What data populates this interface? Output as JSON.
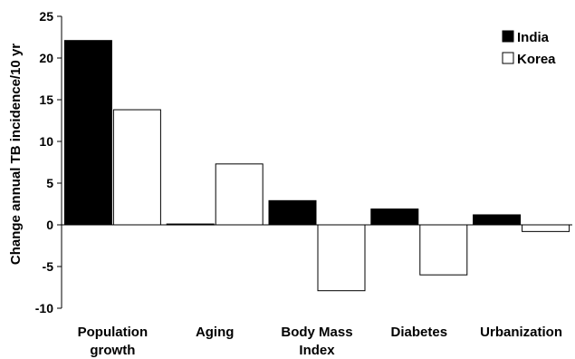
{
  "chart_data": {
    "type": "bar",
    "categories": [
      [
        "Population",
        "growth"
      ],
      [
        "Aging"
      ],
      [
        "Body Mass",
        "Index"
      ],
      [
        "Diabetes"
      ],
      [
        "Urbanization"
      ]
    ],
    "series": [
      {
        "name": "India",
        "color": "#000000",
        "values": [
          22.1,
          0.1,
          2.9,
          1.9,
          1.2
        ]
      },
      {
        "name": "Korea",
        "color": "#ffffff",
        "values": [
          13.8,
          7.3,
          -7.9,
          -6.0,
          -0.8
        ]
      }
    ],
    "ylabel": "Change annual TB incidence/10 yr",
    "ylim": [
      -10,
      25
    ],
    "yticks": [
      -10,
      -5,
      0,
      5,
      10,
      15,
      20,
      25
    ],
    "legend_position": "top-right"
  }
}
